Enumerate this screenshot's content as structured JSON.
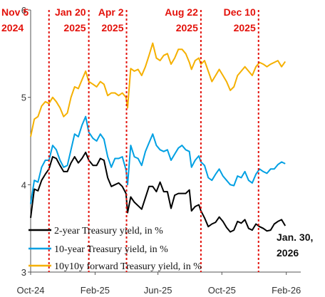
{
  "chart_data": {
    "type": "line",
    "xlabel": "",
    "ylabel": "",
    "ylim": [
      3,
      6
    ],
    "y_ticks": [
      "3",
      "4",
      "5",
      "6"
    ],
    "x_ticks": [
      {
        "date": "2024-10-01",
        "label": "Oct-24"
      },
      {
        "date": "2025-02-01",
        "label": "Feb-25"
      },
      {
        "date": "2025-06-01",
        "label": "Jun-25"
      },
      {
        "date": "2025-10-01",
        "label": "Oct-25"
      },
      {
        "date": "2026-02-01",
        "label": "Feb-26"
      }
    ],
    "xlim": [
      "2024-10-01",
      "2026-02-15"
    ],
    "grid": false,
    "legend_position": "bottom-left",
    "events": [
      {
        "date": "2024-11-05",
        "line1": "Nov 5",
        "line2": "2024"
      },
      {
        "date": "2025-01-20",
        "line1": "Jan 20",
        "line2": "2025"
      },
      {
        "date": "2025-04-02",
        "line1": "Apr 2",
        "line2": "2025"
      },
      {
        "date": "2025-08-22",
        "line1": "Aug 22",
        "line2": "2025"
      },
      {
        "date": "2025-12-10",
        "line1": "Dec 10",
        "line2": "2025"
      }
    ],
    "event_color": "#e3120b",
    "end_note": {
      "line1": "Jan. 30,",
      "line2": "2026"
    },
    "series": [
      {
        "name": "2-year Treasury yield, in %",
        "color": "#000000",
        "points": [
          [
            "2024-10-01",
            3.62
          ],
          [
            "2024-10-08",
            3.95
          ],
          [
            "2024-10-15",
            3.93
          ],
          [
            "2024-10-22",
            4.05
          ],
          [
            "2024-10-29",
            4.12
          ],
          [
            "2024-11-05",
            4.18
          ],
          [
            "2024-11-12",
            4.32
          ],
          [
            "2024-11-19",
            4.3
          ],
          [
            "2024-11-26",
            4.22
          ],
          [
            "2024-12-03",
            4.15
          ],
          [
            "2024-12-10",
            4.15
          ],
          [
            "2024-12-17",
            4.25
          ],
          [
            "2024-12-24",
            4.32
          ],
          [
            "2024-12-31",
            4.25
          ],
          [
            "2025-01-07",
            4.3
          ],
          [
            "2025-01-14",
            4.37
          ],
          [
            "2025-01-20",
            4.28
          ],
          [
            "2025-01-28",
            4.22
          ],
          [
            "2025-02-04",
            4.22
          ],
          [
            "2025-02-11",
            4.3
          ],
          [
            "2025-02-18",
            4.28
          ],
          [
            "2025-02-25",
            4.08
          ],
          [
            "2025-03-04",
            3.98
          ],
          [
            "2025-03-11",
            4.0
          ],
          [
            "2025-03-18",
            4.02
          ],
          [
            "2025-03-25",
            3.98
          ],
          [
            "2025-04-01",
            3.9
          ],
          [
            "2025-04-04",
            3.68
          ],
          [
            "2025-04-10",
            3.86
          ],
          [
            "2025-04-17",
            3.8
          ],
          [
            "2025-04-24",
            3.76
          ],
          [
            "2025-05-01",
            3.72
          ],
          [
            "2025-05-08",
            3.85
          ],
          [
            "2025-05-15",
            3.98
          ],
          [
            "2025-05-22",
            3.98
          ],
          [
            "2025-05-29",
            3.92
          ],
          [
            "2025-06-05",
            4.03
          ],
          [
            "2025-06-12",
            3.92
          ],
          [
            "2025-06-19",
            3.92
          ],
          [
            "2025-06-26",
            3.73
          ],
          [
            "2025-07-03",
            3.88
          ],
          [
            "2025-07-10",
            3.9
          ],
          [
            "2025-07-17",
            3.9
          ],
          [
            "2025-07-24",
            3.9
          ],
          [
            "2025-07-31",
            3.94
          ],
          [
            "2025-08-04",
            3.7
          ],
          [
            "2025-08-11",
            3.75
          ],
          [
            "2025-08-18",
            3.77
          ],
          [
            "2025-08-22",
            3.7
          ],
          [
            "2025-08-29",
            3.62
          ],
          [
            "2025-09-05",
            3.52
          ],
          [
            "2025-09-12",
            3.55
          ],
          [
            "2025-09-19",
            3.57
          ],
          [
            "2025-09-26",
            3.63
          ],
          [
            "2025-10-03",
            3.58
          ],
          [
            "2025-10-10",
            3.51
          ],
          [
            "2025-10-17",
            3.46
          ],
          [
            "2025-10-24",
            3.48
          ],
          [
            "2025-10-31",
            3.58
          ],
          [
            "2025-11-07",
            3.56
          ],
          [
            "2025-11-14",
            3.6
          ],
          [
            "2025-11-21",
            3.5
          ],
          [
            "2025-11-28",
            3.48
          ],
          [
            "2025-12-05",
            3.55
          ],
          [
            "2025-12-12",
            3.52
          ],
          [
            "2025-12-19",
            3.5
          ],
          [
            "2025-12-26",
            3.47
          ],
          [
            "2026-01-02",
            3.48
          ],
          [
            "2026-01-09",
            3.55
          ],
          [
            "2026-01-16",
            3.58
          ],
          [
            "2026-01-23",
            3.6
          ],
          [
            "2026-01-30",
            3.53
          ]
        ]
      },
      {
        "name": "10-year Treasury yield, in %",
        "color": "#00a0e3",
        "points": [
          [
            "2024-10-01",
            3.78
          ],
          [
            "2024-10-08",
            4.05
          ],
          [
            "2024-10-15",
            4.03
          ],
          [
            "2024-10-22",
            4.2
          ],
          [
            "2024-10-29",
            4.28
          ],
          [
            "2024-11-05",
            4.28
          ],
          [
            "2024-11-12",
            4.45
          ],
          [
            "2024-11-19",
            4.4
          ],
          [
            "2024-11-26",
            4.28
          ],
          [
            "2024-12-03",
            4.2
          ],
          [
            "2024-12-10",
            4.22
          ],
          [
            "2024-12-17",
            4.4
          ],
          [
            "2024-12-24",
            4.58
          ],
          [
            "2024-12-31",
            4.55
          ],
          [
            "2025-01-07",
            4.68
          ],
          [
            "2025-01-14",
            4.78
          ],
          [
            "2025-01-20",
            4.6
          ],
          [
            "2025-01-28",
            4.53
          ],
          [
            "2025-02-04",
            4.5
          ],
          [
            "2025-02-11",
            4.58
          ],
          [
            "2025-02-18",
            4.52
          ],
          [
            "2025-02-25",
            4.32
          ],
          [
            "2025-03-04",
            4.2
          ],
          [
            "2025-03-11",
            4.3
          ],
          [
            "2025-03-18",
            4.3
          ],
          [
            "2025-03-25",
            4.32
          ],
          [
            "2025-04-01",
            4.17
          ],
          [
            "2025-04-04",
            4.0
          ],
          [
            "2025-04-10",
            4.45
          ],
          [
            "2025-04-17",
            4.32
          ],
          [
            "2025-04-24",
            4.3
          ],
          [
            "2025-05-01",
            4.22
          ],
          [
            "2025-05-08",
            4.38
          ],
          [
            "2025-05-15",
            4.48
          ],
          [
            "2025-05-22",
            4.58
          ],
          [
            "2025-05-29",
            4.45
          ],
          [
            "2025-06-05",
            4.4
          ],
          [
            "2025-06-12",
            4.38
          ],
          [
            "2025-06-19",
            4.4
          ],
          [
            "2025-06-26",
            4.28
          ],
          [
            "2025-07-03",
            4.35
          ],
          [
            "2025-07-10",
            4.42
          ],
          [
            "2025-07-17",
            4.45
          ],
          [
            "2025-07-24",
            4.4
          ],
          [
            "2025-07-31",
            4.38
          ],
          [
            "2025-08-04",
            4.2
          ],
          [
            "2025-08-11",
            4.28
          ],
          [
            "2025-08-18",
            4.33
          ],
          [
            "2025-08-22",
            4.26
          ],
          [
            "2025-08-29",
            4.22
          ],
          [
            "2025-09-05",
            4.08
          ],
          [
            "2025-09-12",
            4.05
          ],
          [
            "2025-09-19",
            4.12
          ],
          [
            "2025-09-26",
            4.18
          ],
          [
            "2025-10-03",
            4.1
          ],
          [
            "2025-10-10",
            4.05
          ],
          [
            "2025-10-17",
            4.0
          ],
          [
            "2025-10-24",
            3.99
          ],
          [
            "2025-10-31",
            4.1
          ],
          [
            "2025-11-07",
            4.08
          ],
          [
            "2025-11-14",
            4.15
          ],
          [
            "2025-11-21",
            4.05
          ],
          [
            "2025-11-28",
            4.02
          ],
          [
            "2025-12-05",
            4.12
          ],
          [
            "2025-12-12",
            4.18
          ],
          [
            "2025-12-19",
            4.15
          ],
          [
            "2025-12-26",
            4.13
          ],
          [
            "2026-01-02",
            4.18
          ],
          [
            "2026-01-09",
            4.18
          ],
          [
            "2026-01-16",
            4.23
          ],
          [
            "2026-01-23",
            4.26
          ],
          [
            "2026-01-30",
            4.24
          ]
        ]
      },
      {
        "name": "10y10y forward Treasury yield, in %",
        "color": "#f5b000",
        "points": [
          [
            "2024-10-01",
            4.55
          ],
          [
            "2024-10-08",
            4.75
          ],
          [
            "2024-10-15",
            4.78
          ],
          [
            "2024-10-22",
            4.9
          ],
          [
            "2024-10-29",
            4.95
          ],
          [
            "2024-11-05",
            4.93
          ],
          [
            "2024-11-12",
            5.0
          ],
          [
            "2024-11-19",
            4.95
          ],
          [
            "2024-11-26",
            4.88
          ],
          [
            "2024-12-03",
            4.78
          ],
          [
            "2024-12-10",
            4.82
          ],
          [
            "2024-12-17",
            5.0
          ],
          [
            "2024-12-24",
            5.12
          ],
          [
            "2024-12-31",
            5.1
          ],
          [
            "2025-01-07",
            5.2
          ],
          [
            "2025-01-14",
            5.3
          ],
          [
            "2025-01-20",
            5.18
          ],
          [
            "2025-01-28",
            5.15
          ],
          [
            "2025-02-04",
            5.12
          ],
          [
            "2025-02-11",
            5.18
          ],
          [
            "2025-02-18",
            5.15
          ],
          [
            "2025-02-25",
            5.02
          ],
          [
            "2025-03-04",
            5.05
          ],
          [
            "2025-03-11",
            5.05
          ],
          [
            "2025-03-18",
            5.02
          ],
          [
            "2025-03-25",
            5.05
          ],
          [
            "2025-04-01",
            5.0
          ],
          [
            "2025-04-04",
            4.88
          ],
          [
            "2025-04-10",
            5.33
          ],
          [
            "2025-04-17",
            5.3
          ],
          [
            "2025-04-24",
            5.32
          ],
          [
            "2025-05-01",
            5.25
          ],
          [
            "2025-05-08",
            5.35
          ],
          [
            "2025-05-15",
            5.48
          ],
          [
            "2025-05-22",
            5.62
          ],
          [
            "2025-05-29",
            5.45
          ],
          [
            "2025-06-05",
            5.42
          ],
          [
            "2025-06-12",
            5.48
          ],
          [
            "2025-06-19",
            5.5
          ],
          [
            "2025-06-26",
            5.38
          ],
          [
            "2025-07-03",
            5.45
          ],
          [
            "2025-07-10",
            5.55
          ],
          [
            "2025-07-17",
            5.55
          ],
          [
            "2025-07-24",
            5.5
          ],
          [
            "2025-07-31",
            5.4
          ],
          [
            "2025-08-04",
            5.32
          ],
          [
            "2025-08-11",
            5.42
          ],
          [
            "2025-08-18",
            5.45
          ],
          [
            "2025-08-22",
            5.38
          ],
          [
            "2025-08-29",
            5.42
          ],
          [
            "2025-09-05",
            5.3
          ],
          [
            "2025-09-12",
            5.18
          ],
          [
            "2025-09-19",
            5.25
          ],
          [
            "2025-09-26",
            5.32
          ],
          [
            "2025-10-03",
            5.25
          ],
          [
            "2025-10-10",
            5.18
          ],
          [
            "2025-10-17",
            5.08
          ],
          [
            "2025-10-24",
            5.12
          ],
          [
            "2025-10-31",
            5.25
          ],
          [
            "2025-11-07",
            5.3
          ],
          [
            "2025-11-14",
            5.35
          ],
          [
            "2025-11-21",
            5.3
          ],
          [
            "2025-11-28",
            5.25
          ],
          [
            "2025-12-05",
            5.35
          ],
          [
            "2025-12-12",
            5.4
          ],
          [
            "2025-12-19",
            5.38
          ],
          [
            "2025-12-26",
            5.35
          ],
          [
            "2026-01-02",
            5.38
          ],
          [
            "2026-01-09",
            5.4
          ],
          [
            "2026-01-16",
            5.42
          ],
          [
            "2026-01-23",
            5.35
          ],
          [
            "2026-01-30",
            5.41
          ]
        ]
      }
    ]
  }
}
